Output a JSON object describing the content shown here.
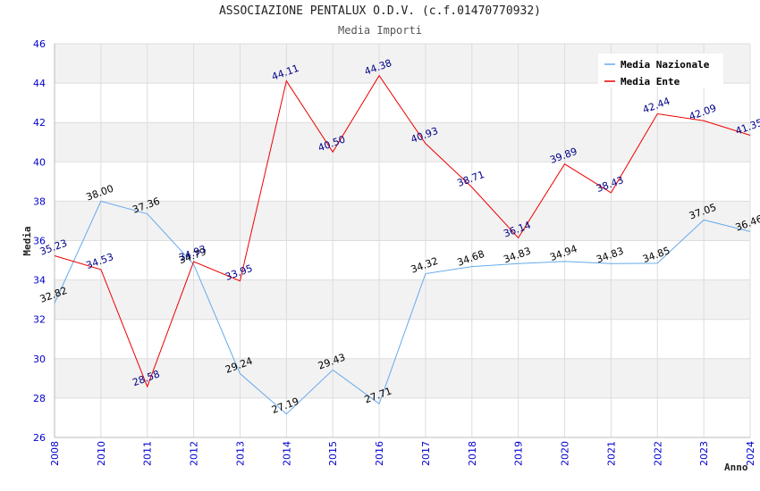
{
  "title": "ASSOCIAZIONE PENTALUX O.D.V. (c.f.01470770932)",
  "subtitle": "Media Importi",
  "chart_data": {
    "type": "line",
    "title": "ASSOCIAZIONE PENTALUX O.D.V. (c.f.01470770932)",
    "subtitle": "Media Importi",
    "xlabel": "Anno",
    "ylabel": "Media",
    "ylim": [
      26,
      46
    ],
    "yticks": [
      26,
      28,
      30,
      32,
      34,
      36,
      38,
      40,
      42,
      44,
      46
    ],
    "categories": [
      "2008",
      "2010",
      "2011",
      "2012",
      "2013",
      "2014",
      "2015",
      "2016",
      "2017",
      "2018",
      "2019",
      "2020",
      "2021",
      "2022",
      "2023",
      "2024"
    ],
    "grid": true,
    "legend_position": "top-right",
    "series": [
      {
        "name": "Media Nazionale",
        "color": "#66aaee",
        "values": [
          32.82,
          38.0,
          37.36,
          34.79,
          29.24,
          27.19,
          29.43,
          27.71,
          34.32,
          34.68,
          34.83,
          34.94,
          34.83,
          34.85,
          37.05,
          36.46
        ],
        "labels": [
          "32.82",
          "38.00",
          "37.36",
          "34.79",
          "29.24",
          "27.19",
          "29.43",
          "27.71",
          "34.32",
          "34.68",
          "34.83",
          "34.94",
          "34.83",
          "34.85",
          "37.05",
          "36.46"
        ]
      },
      {
        "name": "Media Ente",
        "color": "#ee0000",
        "values": [
          35.23,
          34.53,
          28.58,
          34.93,
          33.95,
          44.11,
          40.5,
          44.38,
          40.93,
          38.71,
          36.14,
          39.89,
          38.43,
          42.44,
          42.09,
          41.35
        ],
        "labels": [
          "35.23",
          "34.53",
          "28.58",
          "34.93",
          "33.95",
          "44.11",
          "40.50",
          "44.38",
          "40.93",
          "38.71",
          "36.14",
          "39.89",
          "38.43",
          "42.44",
          "42.09",
          "41.35"
        ]
      }
    ]
  }
}
